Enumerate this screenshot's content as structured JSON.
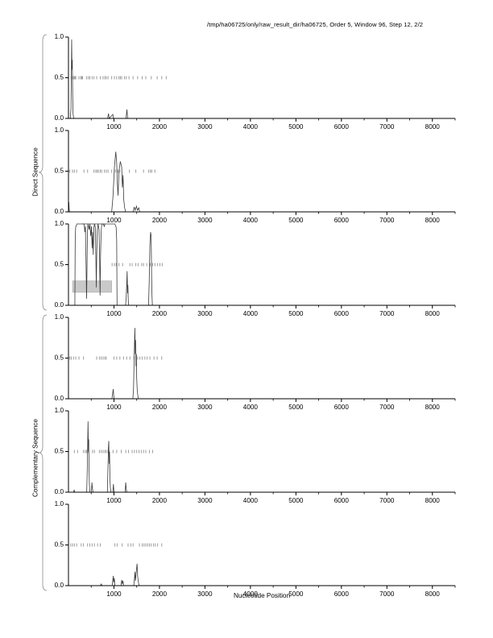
{
  "title": "/tmp/ha06725/only/raw_result_dir/ha06725, Order 5, Window 96, Step 12, 2/2",
  "figure": {
    "xlabel": "Nucleotide Position",
    "groups": [
      {
        "label": "Direct Sequence",
        "panels": [
          0,
          2
        ]
      },
      {
        "label": "Complementary Sequence",
        "panels": [
          3,
          5
        ]
      }
    ]
  },
  "colors": {
    "axis": "#000000",
    "signal_line": "#3a3a3a",
    "envelope_line": "#3a3a3a",
    "hit_marks": "#9b9b9b",
    "highlight_rect_fill": "#c9c9c9",
    "highlight_rect_stroke": "#b2b2b2",
    "brace": "#8a8a8a",
    "text": "#000000"
  },
  "chart_data": {
    "type": "line",
    "xlim": [
      0,
      8500
    ],
    "ylim": [
      0,
      1
    ],
    "x_major_ticks": [
      1000,
      2000,
      3000,
      4000,
      5000,
      6000,
      7000,
      8000
    ],
    "x_minor_ticks": [
      500,
      1500,
      2500,
      3500,
      4500,
      5500,
      6500,
      7500,
      8500
    ],
    "y_ticks": [
      {
        "v": 0.0,
        "label": "0.0"
      },
      {
        "v": 0.5,
        "label": "0.5"
      },
      {
        "v": 1.0,
        "label": "1.0"
      }
    ],
    "hit_level": 0.5,
    "panels": [
      {
        "name": "direct-1",
        "line": [
          [
            2,
            0
          ],
          [
            40,
            0
          ],
          [
            55,
            0.12
          ],
          [
            62,
            0.5
          ],
          [
            70,
            0.97
          ],
          [
            78,
            0.6
          ],
          [
            84,
            0.72
          ],
          [
            92,
            0.3
          ],
          [
            100,
            0.06
          ],
          [
            115,
            0
          ],
          [
            860,
            0
          ],
          [
            880,
            0.06
          ],
          [
            895,
            0
          ],
          [
            975,
            0.05
          ],
          [
            990,
            0
          ],
          [
            1265,
            0
          ],
          [
            1285,
            0.11
          ],
          [
            1300,
            0
          ],
          [
            8500,
            0
          ]
        ],
        "hits": [
          60,
          90,
          105,
          130,
          145,
          160,
          230,
          270,
          290,
          310,
          400,
          440,
          470,
          520,
          560,
          620,
          700,
          760,
          800,
          830,
          870,
          950,
          1010,
          1060,
          1110,
          1140,
          1170,
          1230,
          1270,
          1330,
          1420,
          1520,
          1620,
          1700,
          1820,
          1950,
          2050,
          2150
        ]
      },
      {
        "name": "direct-2",
        "line": [
          [
            2,
            0.02
          ],
          [
            8,
            0.12
          ],
          [
            15,
            0.03
          ],
          [
            25,
            0
          ],
          [
            950,
            0
          ],
          [
            980,
            0.2
          ],
          [
            1010,
            0.55
          ],
          [
            1040,
            0.74
          ],
          [
            1060,
            0.6
          ],
          [
            1075,
            0.35
          ],
          [
            1090,
            0.2
          ],
          [
            1110,
            0.5
          ],
          [
            1140,
            0.62
          ],
          [
            1170,
            0.55
          ],
          [
            1185,
            0.3
          ],
          [
            1200,
            0.45
          ],
          [
            1215,
            0.15
          ],
          [
            1235,
            0.05
          ],
          [
            1255,
            0
          ],
          [
            1420,
            0
          ],
          [
            1445,
            0.06
          ],
          [
            1465,
            0.02
          ],
          [
            1495,
            0.07
          ],
          [
            1515,
            0.02
          ],
          [
            1545,
            0.05
          ],
          [
            1565,
            0
          ],
          [
            8500,
            0
          ]
        ],
        "hits": [
          30,
          90,
          130,
          180,
          340,
          420,
          560,
          600,
          630,
          660,
          700,
          730,
          790,
          830,
          870,
          950,
          1030,
          1080,
          1130,
          1340,
          1480,
          1650,
          1760,
          1800,
          1830,
          1900
        ]
      },
      {
        "name": "direct-3",
        "line": [
          [
            2,
            0
          ],
          [
            1255,
            0
          ],
          [
            1270,
            0.1
          ],
          [
            1282,
            0.3
          ],
          [
            1290,
            0.42
          ],
          [
            1298,
            0.15
          ],
          [
            1306,
            0.25
          ],
          [
            1315,
            0.05
          ],
          [
            1325,
            0
          ],
          [
            1760,
            0
          ],
          [
            1775,
            0.3
          ],
          [
            1790,
            0.75
          ],
          [
            1805,
            0.9
          ],
          [
            1818,
            0.85
          ],
          [
            1828,
            0.35
          ],
          [
            1836,
            0.12
          ],
          [
            1845,
            0
          ],
          [
            8500,
            0
          ]
        ],
        "overlay": [
          [
            300,
            1
          ],
          [
            345,
            1
          ],
          [
            360,
            0.9
          ],
          [
            372,
            0.97
          ],
          [
            385,
            0.55
          ],
          [
            398,
            0.08
          ],
          [
            408,
            0.5
          ],
          [
            418,
            0.92
          ],
          [
            430,
            1
          ],
          [
            455,
            0.93
          ],
          [
            470,
            1
          ],
          [
            490,
            0.85
          ],
          [
            505,
            0.97
          ],
          [
            520,
            0.7
          ],
          [
            532,
            0.9
          ],
          [
            545,
            0.62
          ],
          [
            558,
            0.95
          ],
          [
            572,
            1
          ],
          [
            590,
            0.96
          ],
          [
            602,
            0.6
          ],
          [
            612,
            0.22
          ],
          [
            622,
            0.65
          ],
          [
            635,
            0.92
          ],
          [
            650,
            1
          ],
          [
            672,
            0.93
          ],
          [
            685,
            0.55
          ],
          [
            695,
            0.12
          ],
          [
            705,
            0.6
          ],
          [
            718,
            0.9
          ],
          [
            732,
            1
          ],
          [
            760,
            1
          ],
          [
            790,
            0.97
          ],
          [
            800,
            1
          ]
        ],
        "envelope": [
          [
            140,
            0
          ],
          [
            148,
            0.8
          ],
          [
            158,
            0.96
          ],
          [
            185,
            1
          ],
          [
            1020,
            1
          ],
          [
            1048,
            0.96
          ],
          [
            1060,
            0.8
          ],
          [
            1068,
            0
          ]
        ],
        "highlight_rect": {
          "x0": 90,
          "x1": 950,
          "y0": 0.16,
          "y1": 0.3
        },
        "hits": [
          960,
          1010,
          1050,
          1110,
          1190,
          1350,
          1400,
          1480,
          1530,
          1610,
          1650,
          1720,
          1800,
          1850,
          1900,
          1960,
          2010,
          2060
        ]
      },
      {
        "name": "complementary-1",
        "line": [
          [
            2,
            0
          ],
          [
            955,
            0
          ],
          [
            975,
            0.08
          ],
          [
            985,
            0.12
          ],
          [
            995,
            0.03
          ],
          [
            1005,
            0
          ],
          [
            1415,
            0
          ],
          [
            1430,
            0.12
          ],
          [
            1442,
            0.45
          ],
          [
            1452,
            0.7
          ],
          [
            1460,
            0.87
          ],
          [
            1468,
            0.55
          ],
          [
            1476,
            0.72
          ],
          [
            1484,
            0.4
          ],
          [
            1492,
            0.55
          ],
          [
            1500,
            0.25
          ],
          [
            1510,
            0.12
          ],
          [
            1522,
            0.05
          ],
          [
            1535,
            0
          ],
          [
            8500,
            0
          ]
        ],
        "hits": [
          30,
          60,
          110,
          160,
          230,
          330,
          620,
          680,
          720,
          760,
          800,
          830,
          1000,
          1060,
          1130,
          1210,
          1280,
          1350,
          1440,
          1520,
          1570,
          1620,
          1680,
          1730,
          1790,
          1880,
          1950,
          2050
        ]
      },
      {
        "name": "complementary-2",
        "line": [
          [
            2,
            0
          ],
          [
            115,
            0
          ],
          [
            125,
            0.03
          ],
          [
            135,
            0
          ],
          [
            400,
            0
          ],
          [
            412,
            0.25
          ],
          [
            422,
            0.6
          ],
          [
            430,
            0.87
          ],
          [
            438,
            0.5
          ],
          [
            445,
            0.65
          ],
          [
            452,
            0.3
          ],
          [
            460,
            0.1
          ],
          [
            470,
            0
          ],
          [
            505,
            0
          ],
          [
            515,
            0.12
          ],
          [
            528,
            0.04
          ],
          [
            540,
            0
          ],
          [
            855,
            0
          ],
          [
            868,
            0.3
          ],
          [
            878,
            0.55
          ],
          [
            886,
            0.63
          ],
          [
            895,
            0.35
          ],
          [
            903,
            0.5
          ],
          [
            912,
            0.15
          ],
          [
            922,
            0.05
          ],
          [
            935,
            0
          ],
          [
            975,
            0
          ],
          [
            988,
            0.1
          ],
          [
            1000,
            0
          ],
          [
            1245,
            0
          ],
          [
            1258,
            0.12
          ],
          [
            1270,
            0.04
          ],
          [
            1282,
            0
          ],
          [
            8500,
            0
          ]
        ],
        "hits": [
          130,
          200,
          330,
          370,
          400,
          440,
          530,
          570,
          680,
          720,
          760,
          800,
          830,
          870,
          980,
          1060,
          1160,
          1260,
          1320,
          1400,
          1450,
          1500,
          1550,
          1600,
          1650,
          1700,
          1780,
          1850
        ]
      },
      {
        "name": "complementary-3",
        "line": [
          [
            2,
            0
          ],
          [
            700,
            0
          ],
          [
            720,
            0.02
          ],
          [
            740,
            0
          ],
          [
            960,
            0
          ],
          [
            975,
            0.07
          ],
          [
            985,
            0.12
          ],
          [
            995,
            0.04
          ],
          [
            1008,
            0.09
          ],
          [
            1020,
            0
          ],
          [
            1155,
            0
          ],
          [
            1170,
            0.07
          ],
          [
            1185,
            0.02
          ],
          [
            1198,
            0.06
          ],
          [
            1210,
            0
          ],
          [
            1435,
            0
          ],
          [
            1450,
            0.08
          ],
          [
            1462,
            0.17
          ],
          [
            1472,
            0.06
          ],
          [
            1482,
            0.12
          ],
          [
            1495,
            0.2
          ],
          [
            1508,
            0.27
          ],
          [
            1520,
            0.12
          ],
          [
            1532,
            0.06
          ],
          [
            1545,
            0.02
          ],
          [
            1560,
            0
          ],
          [
            8500,
            0
          ]
        ],
        "hits": [
          50,
          90,
          130,
          180,
          280,
          330,
          420,
          470,
          520,
          570,
          640,
          700,
          1020,
          1070,
          1180,
          1310,
          1370,
          1420,
          1560,
          1620,
          1660,
          1700,
          1740,
          1780,
          1820,
          1870,
          1910,
          1960,
          2050
        ]
      }
    ]
  }
}
